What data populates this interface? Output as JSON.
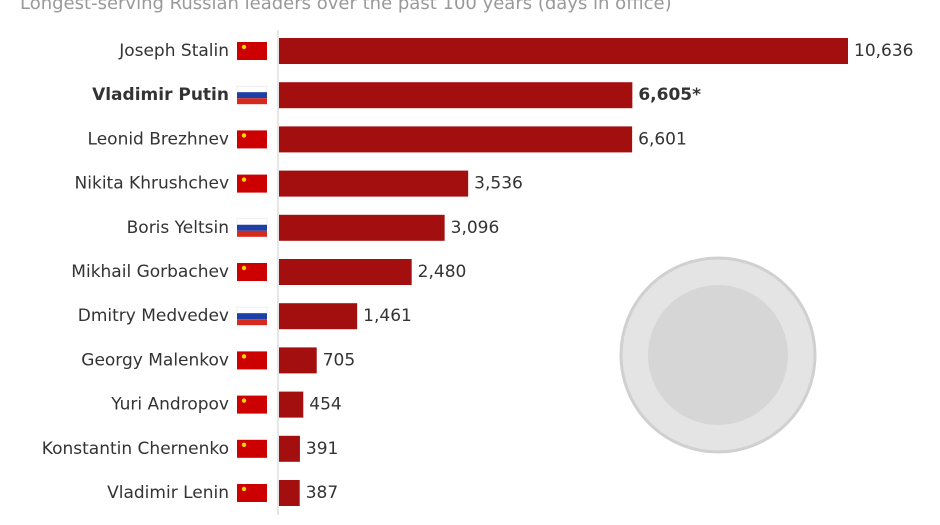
{
  "chart_data": {
    "type": "bar",
    "orientation": "horizontal",
    "title": "Longest-serving Russian leaders over the past 100 years (days in office)",
    "categories": [
      "Joseph Stalin",
      "Vladimir Putin",
      "Leonid Brezhnev",
      "Nikita Khrushchev",
      "Boris Yeltsin",
      "Mikhail Gorbachev",
      "Dmitry Medvedev",
      "Georgy Malenkov",
      "Yuri Andropov",
      "Konstantin Chernenko",
      "Vladimir Lenin"
    ],
    "values": [
      10636,
      6605,
      6601,
      3536,
      3096,
      2480,
      1461,
      705,
      454,
      391,
      387
    ],
    "value_labels": [
      "10,636",
      "6,605*",
      "6,601",
      "3,536",
      "3,096",
      "2,480",
      "1,461",
      "705",
      "454",
      "391",
      "387"
    ],
    "color": "#a30e0e",
    "xlim": [
      0,
      10636
    ]
  }
}
